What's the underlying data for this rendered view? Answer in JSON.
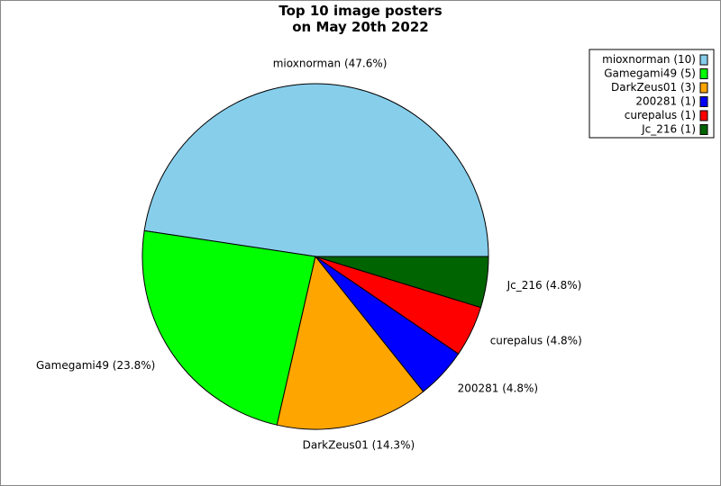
{
  "chart_data": {
    "type": "pie",
    "title": "Top 10 image posters\non May 20th 2022",
    "title_lines": [
      "Top 10 image posters",
      "on May 20th 2022"
    ],
    "start_angle_deg": 0,
    "direction": "counterclockwise",
    "legend_position": "top-right",
    "slices": [
      {
        "label": "mioxnorman",
        "value": 10,
        "percent_label": "mioxnorman (47.6%)",
        "legend_label": "mioxnorman (10)",
        "color": "#87CEEB"
      },
      {
        "label": "Gamegami49",
        "value": 5,
        "percent_label": "Gamegami49 (23.8%)",
        "legend_label": "Gamegami49 (5)",
        "color": "#00FF00"
      },
      {
        "label": "DarkZeus01",
        "value": 3,
        "percent_label": "DarkZeus01 (14.3%)",
        "legend_label": "DarkZeus01 (3)",
        "color": "#FFA500"
      },
      {
        "label": "200281",
        "value": 1,
        "percent_label": "200281 (4.8%)",
        "legend_label": "200281 (1)",
        "color": "#0000FF"
      },
      {
        "label": "curepalus",
        "value": 1,
        "percent_label": "curepalus (4.8%)",
        "legend_label": "curepalus (1)",
        "color": "#FF0000"
      },
      {
        "label": "Jc_216",
        "value": 1,
        "percent_label": "Jc_216 (4.8%)",
        "legend_label": "Jc_216 (1)",
        "color": "#006400"
      }
    ]
  }
}
